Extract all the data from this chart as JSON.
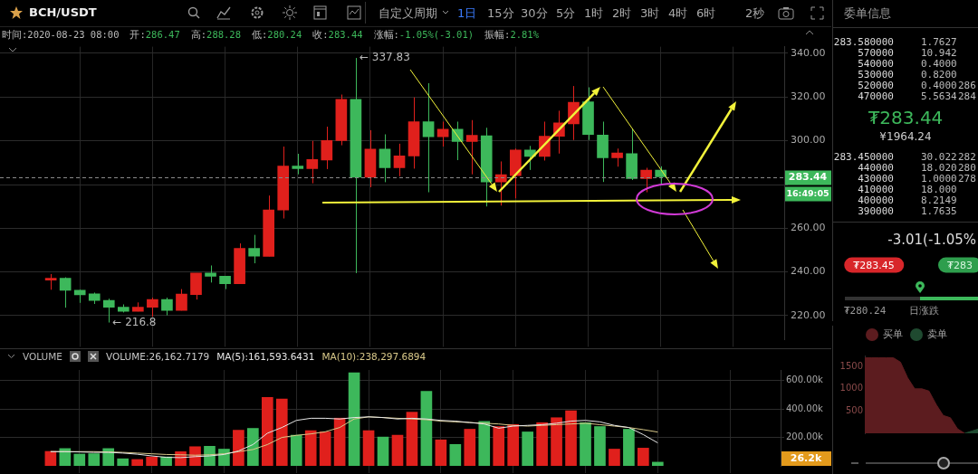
{
  "chart_data": [
    {
      "type": "candlestick",
      "categories": [
        null,
        null,
        null,
        null,
        null,
        null,
        null,
        null,
        null,
        null,
        null,
        null,
        null,
        null,
        null,
        null,
        null,
        null,
        null,
        null,
        null,
        null,
        null,
        null,
        null,
        null,
        null,
        null,
        null,
        null,
        null,
        null,
        null,
        null,
        null,
        null,
        null,
        null,
        null,
        null,
        null,
        null,
        null,
        null,
        null,
        null,
        null,
        null
      ],
      "ohlc": [
        [
          236.2,
          239.0,
          231.8,
          237.1
        ],
        [
          237.1,
          237.5,
          223.6,
          231.5
        ],
        [
          231.6,
          231.8,
          225.8,
          229.5
        ],
        [
          229.9,
          230.5,
          225.3,
          226.9
        ],
        [
          226.9,
          227.7,
          216.8,
          223.8
        ],
        [
          223.8,
          225.1,
          221.4,
          221.9
        ],
        [
          221.9,
          226.0,
          221.9,
          223.8
        ],
        [
          223.8,
          228.2,
          219.5,
          227.3
        ],
        [
          227.3,
          228.2,
          220.1,
          222.3
        ],
        [
          222.3,
          232.1,
          222.3,
          229.8
        ],
        [
          229.6,
          239.4,
          227.3,
          239.4
        ],
        [
          239.4,
          242.9,
          235.1,
          238.0
        ],
        [
          238.0,
          238.0,
          232.1,
          234.5
        ],
        [
          234.5,
          253.0,
          234.5,
          250.7
        ],
        [
          250.7,
          256.9,
          243.9,
          247.2
        ],
        [
          247.1,
          274.9,
          247.1,
          268.3
        ],
        [
          268.3,
          297.3,
          264.4,
          288.4
        ],
        [
          288.4,
          294.0,
          284.6,
          287.2
        ],
        [
          287.2,
          299.9,
          280.5,
          291.4
        ],
        [
          291.1,
          306.4,
          287.0,
          300.1
        ],
        [
          300.0,
          321.1,
          297.9,
          318.9
        ],
        [
          318.9,
          337.83,
          239.4,
          283.3
        ],
        [
          283.3,
          304.8,
          278.7,
          296.1
        ],
        [
          296.1,
          302.9,
          281.0,
          287.6
        ],
        [
          287.6,
          298.6,
          283.7,
          293.0
        ],
        [
          293.0,
          319.8,
          287.2,
          308.7
        ],
        [
          308.7,
          326.3,
          276.4,
          301.8
        ],
        [
          301.8,
          308.7,
          297.3,
          305.2
        ],
        [
          305.2,
          308.7,
          291.1,
          299.6
        ],
        [
          299.6,
          309.4,
          284.6,
          302.5
        ],
        [
          302.2,
          305.9,
          269.9,
          281.1
        ],
        [
          281.1,
          290.5,
          270.3,
          284.4
        ],
        [
          284.0,
          296.4,
          273.6,
          295.7
        ],
        [
          295.7,
          297.6,
          286.6,
          292.8
        ],
        [
          292.8,
          308.7,
          290.9,
          302.0
        ],
        [
          302.0,
          313.7,
          294.1,
          308.1
        ],
        [
          307.7,
          325.0,
          300.3,
          317.6
        ],
        [
          317.8,
          324.4,
          300.3,
          302.8
        ],
        [
          302.6,
          308.7,
          281.1,
          292.2
        ],
        [
          292.2,
          296.4,
          288.1,
          294.4
        ],
        [
          294.1,
          305.5,
          282.0,
          282.7
        ],
        [
          282.7,
          287.6,
          276.4,
          286.47
        ],
        [
          286.47,
          288.28,
          280.24,
          283.44
        ],
        null,
        null,
        null,
        null,
        null
      ],
      "colors": [
        "#e0201c",
        "#3db85b",
        "#3db85b",
        "#3db85b",
        "#3db85b",
        "#3db85b",
        "#e0201c",
        "#e0201c",
        "#3db85b",
        "#e0201c",
        "#e0201c",
        "#3db85b",
        "#3db85b",
        "#e0201c",
        "#3db85b",
        "#e0201c",
        "#e0201c",
        "#3db85b",
        "#e0201c",
        "#e0201c",
        "#e0201c",
        "#3db85b",
        "#e0201c",
        "#3db85b",
        "#e0201c",
        "#e0201c",
        "#3db85b",
        "#e0201c",
        "#3db85b",
        "#e0201c",
        "#3db85b",
        "#e0201c",
        "#e0201c",
        "#3db85b",
        "#e0201c",
        "#e0201c",
        "#e0201c",
        "#3db85b",
        "#3db85b",
        "#e0201c",
        "#3db85b",
        "#e0201c",
        "#3db85b",
        null,
        null,
        null,
        null,
        null
      ],
      "ylim": [
        209,
        343
      ],
      "yticks": [
        {
          "value": 220,
          "label": "220.00"
        },
        {
          "value": 240,
          "label": "240.00"
        },
        {
          "value": 260,
          "label": "260.00"
        },
        {
          "value": 280,
          "label": null
        },
        {
          "value": 300,
          "label": "300.00"
        },
        {
          "value": 320,
          "label": "320.00"
        },
        {
          "value": 340,
          "label": "340.00"
        }
      ],
      "grid": true,
      "tick_labels": "y",
      "ref_lines": [
        {
          "axis": "y",
          "value": 283.44,
          "label": "283.44",
          "color": "#8a8a8a",
          "line_style": "dashed"
        }
      ],
      "annotations": [
        "BCH/USDT",
        "自定义周期",
        "1日",
        "15分",
        "30分",
        "5分",
        "1时",
        "2时",
        "3时",
        "4时",
        "6时",
        "2秒",
        "时间:2020-08-23 08:00",
        "开:286.47",
        "高:288.28",
        "低:280.24",
        "收:283.44",
        "涨幅:-1.05%(-3.01)",
        "振幅:2.81%",
        "← 337.83",
        "← 216.8",
        "16:49:05"
      ]
    },
    {
      "type": "bar",
      "categories": [
        null,
        null,
        null,
        null,
        null,
        null,
        null,
        null,
        null,
        null,
        null,
        null,
        null,
        null,
        null,
        null,
        null,
        null,
        null,
        null,
        null,
        null,
        null,
        null,
        null,
        null,
        null,
        null,
        null,
        null,
        null,
        null,
        null,
        null,
        null,
        null,
        null,
        null,
        null,
        null,
        null,
        null,
        null,
        null,
        null,
        null,
        null,
        null
      ],
      "series": [
        {
          "type": "bar",
          "values": [
            102000,
            122000,
            83000,
            86000,
            122000,
            50000,
            45000,
            63000,
            63000,
            100000,
            135000,
            138000,
            118000,
            251000,
            264000,
            482000,
            470000,
            216000,
            248000,
            239000,
            336000,
            655000,
            248000,
            203000,
            216000,
            378000,
            525000,
            183000,
            151000,
            258000,
            313000,
            277000,
            291000,
            239000,
            304000,
            339000,
            388000,
            304000,
            277000,
            118000,
            258000,
            125000,
            26200,
            null,
            null,
            null,
            null,
            null
          ],
          "colors": [
            "#e0201c",
            "#3db85b",
            "#3db85b",
            "#3db85b",
            "#3db85b",
            "#3db85b",
            "#e0201c",
            "#e0201c",
            "#3db85b",
            "#e0201c",
            "#e0201c",
            "#3db85b",
            "#3db85b",
            "#e0201c",
            "#3db85b",
            "#e0201c",
            "#e0201c",
            "#3db85b",
            "#e0201c",
            "#e0201c",
            "#e0201c",
            "#3db85b",
            "#e0201c",
            "#3db85b",
            "#e0201c",
            "#e0201c",
            "#3db85b",
            "#e0201c",
            "#3db85b",
            "#e0201c",
            "#3db85b",
            "#e0201c",
            "#e0201c",
            "#3db85b",
            "#e0201c",
            "#e0201c",
            "#e0201c",
            "#3db85b",
            "#3db85b",
            "#e0201c",
            "#3db85b",
            "#e0201c",
            "#3db85b",
            null,
            null,
            null,
            null,
            null
          ]
        },
        {
          "type": "line",
          "color": "#e6e6e6",
          "values": [
            100000,
            100000,
            98000,
            95000,
            95000,
            90000,
            82000,
            70000,
            60000,
            58000,
            65000,
            70000,
            80000,
            105000,
            150000,
            230000,
            270000,
            320000,
            335000,
            335000,
            330000,
            340000,
            345000,
            340000,
            330000,
            335000,
            330000,
            320000,
            315000,
            305000,
            295000,
            265000,
            280000,
            285000,
            290000,
            300000,
            315000,
            320000,
            310000,
            285000,
            270000,
            220000,
            162000,
            null,
            null,
            null,
            null,
            null
          ]
        },
        {
          "type": "line",
          "color": "#d9c98a",
          "values": [
            100000,
            100000,
            100000,
            100000,
            98000,
            95000,
            90000,
            85000,
            80000,
            78000,
            75000,
            78000,
            85000,
            100000,
            115000,
            150000,
            200000,
            215000,
            225000,
            240000,
            270000,
            330000,
            345000,
            340000,
            335000,
            330000,
            325000,
            315000,
            310000,
            305000,
            300000,
            295000,
            285000,
            280000,
            285000,
            290000,
            295000,
            300000,
            290000,
            280000,
            270000,
            255000,
            238000,
            null,
            null,
            null,
            null,
            null
          ]
        }
      ],
      "ylim": [
        0,
        675000
      ],
      "yticks": [
        {
          "value": 200000,
          "label": "200.00k"
        },
        {
          "value": 400000,
          "label": "400.00k"
        },
        {
          "value": 600000,
          "label": "600.00k"
        }
      ],
      "grid": true,
      "tick_labels": "y",
      "annotations": [
        "VOLUME",
        "VOLUME:26,162.7179",
        "MA(5):161,593.6431",
        "MA(10):238,297.6894",
        "26.2k"
      ]
    },
    {
      "type": "other",
      "title": "委单信息",
      "annotations": [
        "283.580000",
        "1.7627",
        "570000",
        "10.942",
        "540000",
        "0.4000",
        "530000",
        "0.8200",
        "520000",
        "0.4000",
        "286",
        "470000",
        "5.5634",
        "284",
        "₮283.44",
        "¥1964.24",
        "283.450000",
        "30.022",
        "282",
        "440000",
        "18.020",
        "280",
        "430000",
        "1.0000",
        "278",
        "410000",
        "18.000",
        "400000",
        "8.2149",
        "390000",
        "1.7635",
        "-3.01(-1.05%",
        "₮283.45",
        "₮283",
        "₮280.24",
        "日涨跌"
      ]
    },
    {
      "type": "area",
      "categories": [
        null,
        null,
        null,
        null,
        null,
        null,
        null,
        null,
        null,
        null,
        null,
        null,
        null,
        null,
        null,
        null,
        null
      ],
      "series": [
        {
          "name": "买单",
          "color": "#5c1c1f",
          "values": [
            1700,
            1700,
            1700,
            1700,
            1700,
            1600,
            1250,
            1000,
            1000,
            950,
            650,
            400,
            350,
            100,
            0,
            null,
            null
          ]
        },
        {
          "name": "卖单",
          "color": "#1f4a30",
          "values": [
            null,
            null,
            null,
            null,
            null,
            null,
            null,
            null,
            null,
            null,
            null,
            null,
            null,
            null,
            0,
            50,
            100
          ]
        }
      ],
      "ylim": [
        0,
        1750
      ],
      "yticks": [
        500,
        1000,
        1500
      ],
      "tick_labels": "y",
      "legend": "top"
    }
  ]
}
